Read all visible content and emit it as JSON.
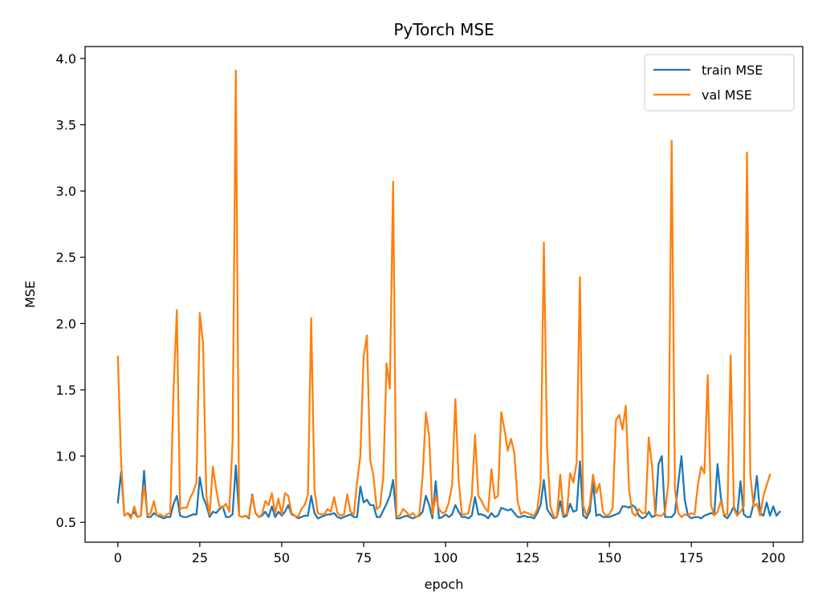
{
  "chart_data": {
    "type": "line",
    "title": "PyTorch MSE",
    "xlabel": "epoch",
    "ylabel": "MSE",
    "xlim": [
      -10,
      209
    ],
    "ylim": [
      0.35,
      4.09
    ],
    "xticks": [
      0,
      25,
      50,
      75,
      100,
      125,
      150,
      175,
      200
    ],
    "yticks": [
      0.5,
      1.0,
      1.5,
      2.0,
      2.5,
      3.0,
      3.5,
      4.0
    ],
    "xtick_labels": [
      "0",
      "25",
      "50",
      "75",
      "100",
      "125",
      "150",
      "175",
      "200"
    ],
    "ytick_labels": [
      "0.5",
      "1.0",
      "1.5",
      "2.0",
      "2.5",
      "3.0",
      "3.5",
      "4.0"
    ],
    "grid": false,
    "legend": "top-right",
    "series": [
      {
        "name": "train MSE",
        "color": "#1f77b4",
        "values": [
          0.65,
          0.88,
          0.55,
          0.57,
          0.55,
          0.58,
          0.54,
          0.55,
          0.89,
          0.54,
          0.54,
          0.57,
          0.55,
          0.54,
          0.53,
          0.54,
          0.54,
          0.64,
          0.7,
          0.55,
          0.54,
          0.54,
          0.55,
          0.56,
          0.56,
          0.84,
          0.69,
          0.63,
          0.54,
          0.58,
          0.57,
          0.6,
          0.62,
          0.54,
          0.54,
          0.56,
          0.93,
          0.55,
          0.54,
          0.55,
          0.53,
          0.71,
          0.57,
          0.54,
          0.55,
          0.58,
          0.54,
          0.62,
          0.54,
          0.58,
          0.55,
          0.58,
          0.63,
          0.56,
          0.55,
          0.53,
          0.54,
          0.55,
          0.55,
          0.7,
          0.57,
          0.53,
          0.54,
          0.55,
          0.56,
          0.56,
          0.57,
          0.54,
          0.53,
          0.54,
          0.55,
          0.56,
          0.54,
          0.54,
          0.77,
          0.65,
          0.67,
          0.63,
          0.63,
          0.54,
          0.54,
          0.59,
          0.64,
          0.7,
          0.82,
          0.53,
          0.53,
          0.54,
          0.55,
          0.54,
          0.53,
          0.54,
          0.55,
          0.58,
          0.7,
          0.63,
          0.53,
          0.81,
          0.53,
          0.54,
          0.56,
          0.54,
          0.56,
          0.63,
          0.58,
          0.54,
          0.54,
          0.53,
          0.55,
          0.69,
          0.56,
          0.56,
          0.55,
          0.53,
          0.57,
          0.54,
          0.55,
          0.61,
          0.6,
          0.59,
          0.6,
          0.57,
          0.54,
          0.54,
          0.55,
          0.54,
          0.54,
          0.53,
          0.57,
          0.63,
          0.82,
          0.6,
          0.56,
          0.53,
          0.54,
          0.66,
          0.54,
          0.55,
          0.64,
          0.58,
          0.59,
          0.96,
          0.55,
          0.53,
          0.58,
          0.8,
          0.55,
          0.56,
          0.54,
          0.54,
          0.54,
          0.55,
          0.56,
          0.57,
          0.62,
          0.62,
          0.61,
          0.63,
          0.61,
          0.55,
          0.53,
          0.54,
          0.58,
          0.54,
          0.55,
          0.94,
          1.0,
          0.54,
          0.54,
          0.54,
          0.57,
          0.79,
          1.0,
          0.67,
          0.55,
          0.53,
          0.54,
          0.54,
          0.53,
          0.55,
          0.56,
          0.57,
          0.56,
          0.94,
          0.69,
          0.55,
          0.53,
          0.57,
          0.62,
          0.55,
          0.81,
          0.56,
          0.54,
          0.54,
          0.64,
          0.85,
          0.57,
          0.55,
          0.65,
          0.55,
          0.62,
          0.55,
          0.58
        ]
      },
      {
        "name": "val MSE",
        "color": "#ff7f0e",
        "values": [
          1.75,
          0.95,
          0.55,
          0.57,
          0.53,
          0.62,
          0.54,
          0.55,
          0.78,
          0.55,
          0.57,
          0.66,
          0.55,
          0.56,
          0.54,
          0.56,
          0.57,
          1.5,
          2.1,
          0.6,
          0.61,
          0.61,
          0.68,
          0.73,
          0.8,
          2.08,
          1.85,
          0.7,
          0.56,
          0.92,
          0.75,
          0.62,
          0.61,
          0.64,
          0.58,
          1.1,
          3.91,
          0.55,
          0.54,
          0.55,
          0.54,
          0.7,
          0.57,
          0.54,
          0.56,
          0.66,
          0.63,
          0.72,
          0.57,
          0.68,
          0.56,
          0.72,
          0.7,
          0.57,
          0.55,
          0.54,
          0.6,
          0.63,
          0.71,
          2.04,
          0.75,
          0.57,
          0.56,
          0.56,
          0.6,
          0.58,
          0.69,
          0.57,
          0.55,
          0.56,
          0.71,
          0.58,
          0.56,
          0.8,
          1.0,
          1.75,
          1.91,
          0.97,
          0.85,
          0.6,
          0.62,
          0.84,
          1.7,
          1.51,
          3.07,
          0.55,
          0.55,
          0.6,
          0.58,
          0.55,
          0.57,
          0.54,
          0.56,
          0.85,
          1.33,
          1.15,
          0.56,
          0.7,
          0.6,
          0.57,
          0.58,
          0.65,
          0.78,
          1.43,
          0.81,
          0.56,
          0.56,
          0.57,
          0.7,
          1.16,
          0.7,
          0.66,
          0.61,
          0.58,
          0.9,
          0.68,
          0.7,
          1.33,
          1.2,
          1.04,
          1.13,
          1.02,
          0.66,
          0.56,
          0.58,
          0.57,
          0.56,
          0.55,
          0.6,
          0.8,
          2.61,
          1.05,
          0.62,
          0.54,
          0.54,
          0.86,
          0.56,
          0.56,
          0.87,
          0.8,
          0.95,
          2.35,
          0.63,
          0.55,
          0.63,
          0.86,
          0.72,
          0.79,
          0.58,
          0.55,
          0.56,
          0.61,
          1.27,
          1.31,
          1.2,
          1.38,
          0.75,
          0.57,
          0.55,
          0.6,
          0.57,
          0.57,
          1.14,
          0.93,
          0.56,
          0.55,
          0.55,
          0.58,
          0.8,
          3.38,
          0.75,
          0.57,
          0.54,
          0.56,
          0.55,
          0.57,
          0.56,
          0.78,
          0.92,
          0.87,
          1.61,
          0.63,
          0.55,
          0.58,
          0.66,
          0.56,
          0.56,
          1.76,
          0.6,
          0.55,
          0.58,
          0.62,
          3.29,
          0.86,
          0.62,
          0.64,
          0.55,
          0.7,
          0.78,
          0.86
        ]
      }
    ]
  }
}
